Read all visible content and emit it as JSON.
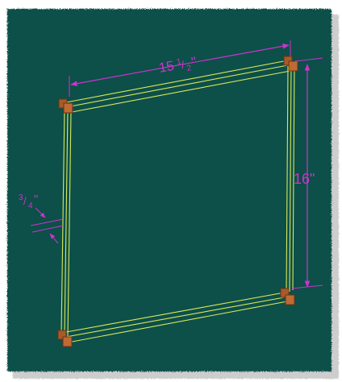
{
  "colors": {
    "background": "#0f4f48",
    "frame_edge": "#d9e95a",
    "dimension": "#cc33cc",
    "corner_block": "#a85a2a",
    "corner_block_dark": "#6b3410"
  },
  "dimensions": {
    "width_whole": "15",
    "width_num": "1",
    "width_den": "2",
    "width_suffix": "\"",
    "height_label": "16\"",
    "thickness_num": "3",
    "thickness_den": "4",
    "thickness_suffix": "\""
  }
}
